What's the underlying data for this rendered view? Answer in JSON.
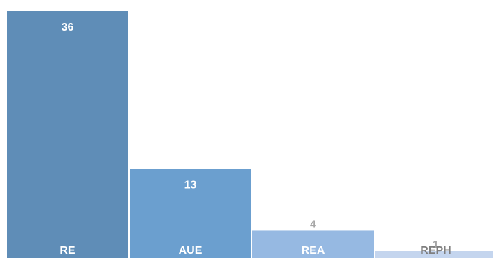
{
  "chart_data": {
    "type": "bar",
    "categories": [
      "RE",
      "AUE",
      "REA",
      "REPH"
    ],
    "values": [
      36,
      13,
      4,
      1
    ],
    "ylim": [
      0,
      36
    ],
    "grid": false,
    "legend": "none",
    "colors": [
      "#5f8db7",
      "#6b9fcf",
      "#96b9e2",
      "#c4d5ee"
    ],
    "value_label_colors": [
      "#ffffff",
      "#ffffff",
      "#a6a6a6",
      "#a6a6a6"
    ],
    "category_label_colors": [
      "#ffffff",
      "#ffffff",
      "#ffffff",
      "#7f7f7f"
    ]
  }
}
